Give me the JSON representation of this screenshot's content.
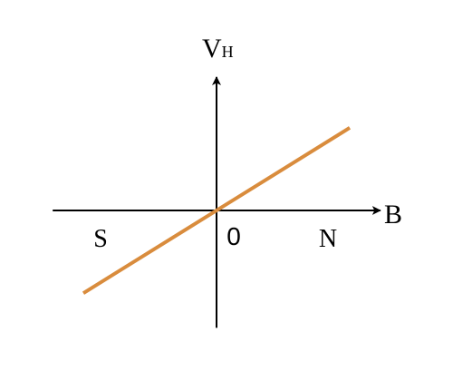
{
  "chart_data": {
    "type": "line",
    "ylabel_main": "V",
    "ylabel_sub": "H",
    "xlabel": "B",
    "origin_label": "0",
    "x_side_labels": {
      "negative": "S",
      "positive": "N"
    },
    "series": [
      {
        "x": [
          -1.0,
          1.0
        ],
        "y": [
          -0.62,
          0.62
        ]
      }
    ],
    "xlim": [
      -1.23,
      1.23
    ],
    "ylim": [
      -0.88,
      1.0
    ],
    "grid": false,
    "legend": "none",
    "colors": {
      "line": "#D98C3D",
      "axes": "#000000"
    }
  }
}
